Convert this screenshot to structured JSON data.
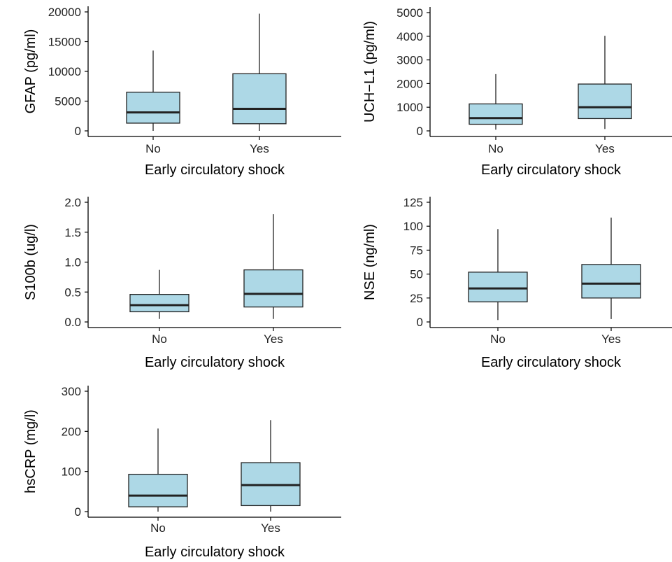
{
  "chart_data": [
    {
      "type": "boxplot",
      "xlabel": "Early circulatory shock",
      "ylabel": "GFAP (pg/ml)",
      "categories": [
        "No",
        "Yes"
      ],
      "yticks": [
        0,
        5000,
        10000,
        15000,
        20000
      ],
      "ylim": [
        0,
        20000
      ],
      "box_color": "#add8e6",
      "boxes": [
        {
          "category": "No",
          "whisker_low": 0,
          "q1": 1300,
          "median": 3100,
          "q3": 6500,
          "whisker_high": 13500
        },
        {
          "category": "Yes",
          "whisker_low": 0,
          "q1": 1200,
          "median": 3700,
          "q3": 9600,
          "whisker_high": 19700
        }
      ]
    },
    {
      "type": "boxplot",
      "xlabel": "Early circulatory shock",
      "ylabel": "UCH−L1 (pg/ml)",
      "categories": [
        "No",
        "Yes"
      ],
      "yticks": [
        0,
        1000,
        2000,
        3000,
        4000,
        5000
      ],
      "ylim": [
        0,
        5000
      ],
      "box_color": "#add8e6",
      "boxes": [
        {
          "category": "No",
          "whisker_low": 50,
          "q1": 280,
          "median": 540,
          "q3": 1140,
          "whisker_high": 2400
        },
        {
          "category": "Yes",
          "whisker_low": 80,
          "q1": 520,
          "median": 1000,
          "q3": 1980,
          "whisker_high": 4020
        }
      ]
    },
    {
      "type": "boxplot",
      "xlabel": "Early circulatory shock",
      "ylabel": "S100b (ug/l)",
      "categories": [
        "No",
        "Yes"
      ],
      "yticks": [
        "0.0",
        "0.5",
        "1.0",
        "1.5",
        "2.0"
      ],
      "ylim": [
        0,
        2
      ],
      "box_color": "#add8e6",
      "boxes": [
        {
          "category": "No",
          "whisker_low": 0.05,
          "q1": 0.17,
          "median": 0.28,
          "q3": 0.46,
          "whisker_high": 0.87
        },
        {
          "category": "Yes",
          "whisker_low": 0.05,
          "q1": 0.25,
          "median": 0.47,
          "q3": 0.87,
          "whisker_high": 1.8
        }
      ]
    },
    {
      "type": "boxplot",
      "xlabel": "Early circulatory shock",
      "ylabel": "NSE (ng/ml)",
      "categories": [
        "No",
        "Yes"
      ],
      "yticks": [
        0,
        25,
        50,
        75,
        100,
        125
      ],
      "ylim": [
        0,
        125
      ],
      "box_color": "#add8e6",
      "boxes": [
        {
          "category": "No",
          "whisker_low": 2,
          "q1": 21,
          "median": 35,
          "q3": 52,
          "whisker_high": 97
        },
        {
          "category": "Yes",
          "whisker_low": 3,
          "q1": 25,
          "median": 40,
          "q3": 60,
          "whisker_high": 109
        }
      ]
    },
    {
      "type": "boxplot",
      "xlabel": "Early circulatory shock",
      "ylabel": "hsCRP (mg/l)",
      "categories": [
        "No",
        "Yes"
      ],
      "yticks": [
        0,
        100,
        200,
        300
      ],
      "ylim": [
        0,
        300
      ],
      "box_color": "#add8e6",
      "boxes": [
        {
          "category": "No",
          "whisker_low": 0,
          "q1": 12,
          "median": 40,
          "q3": 93,
          "whisker_high": 207
        },
        {
          "category": "Yes",
          "whisker_low": 0,
          "q1": 15,
          "median": 66,
          "q3": 122,
          "whisker_high": 228
        }
      ]
    }
  ]
}
